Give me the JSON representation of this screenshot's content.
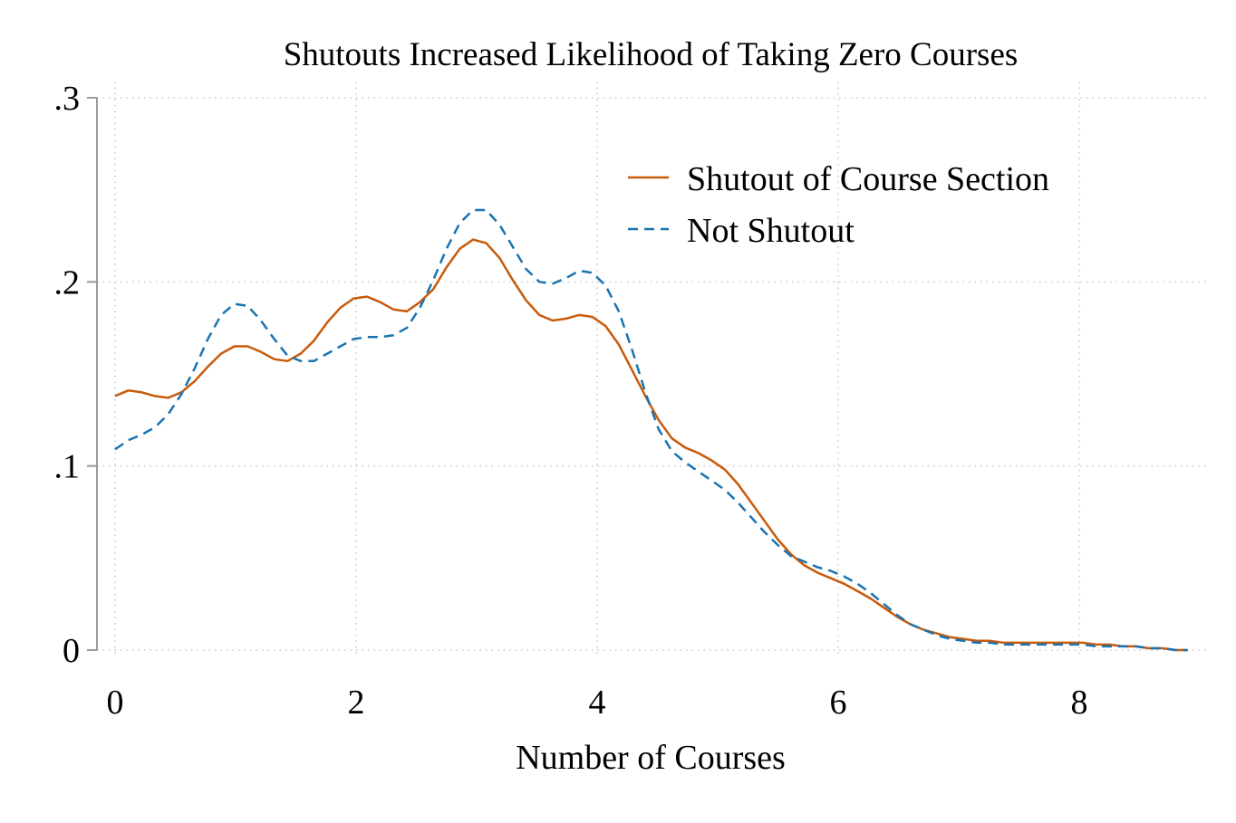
{
  "chart_data": {
    "type": "line",
    "title": "Shutouts Increased Likelihood of Taking Zero Courses",
    "xlabel": "Number of Courses",
    "ylabel": "",
    "xlim": [
      0,
      8.9
    ],
    "ylim": [
      0,
      0.3
    ],
    "x_ticks": [
      0,
      2,
      4,
      6,
      8
    ],
    "x_tick_labels": [
      "0",
      "2",
      "4",
      "6",
      "8"
    ],
    "y_ticks": [
      0,
      0.1,
      0.2,
      0.3
    ],
    "y_tick_labels": [
      "0",
      ".1",
      ".2",
      ".3"
    ],
    "grid": true,
    "legend_position": "top-right",
    "series": [
      {
        "name": "Shutout of Course Section",
        "color": "#c85a0a",
        "style": "solid",
        "x": [
          0,
          0.11,
          0.22,
          0.33,
          0.44,
          0.55,
          0.66,
          0.77,
          0.88,
          0.99,
          1.1,
          1.21,
          1.32,
          1.43,
          1.54,
          1.65,
          1.76,
          1.87,
          1.98,
          2.09,
          2.2,
          2.31,
          2.42,
          2.53,
          2.64,
          2.75,
          2.86,
          2.97,
          3.08,
          3.19,
          3.3,
          3.41,
          3.52,
          3.63,
          3.74,
          3.85,
          3.96,
          4.07,
          4.18,
          4.29,
          4.4,
          4.51,
          4.62,
          4.73,
          4.84,
          4.95,
          5.06,
          5.17,
          5.28,
          5.39,
          5.5,
          5.61,
          5.72,
          5.83,
          5.94,
          6.05,
          6.16,
          6.27,
          6.38,
          6.49,
          6.6,
          6.71,
          6.82,
          6.93,
          7.04,
          7.15,
          7.26,
          7.37,
          7.48,
          7.59,
          7.7,
          7.81,
          7.92,
          8.03,
          8.14,
          8.25,
          8.36,
          8.47,
          8.58,
          8.69,
          8.8,
          8.9
        ],
        "y": [
          0.138,
          0.141,
          0.14,
          0.138,
          0.137,
          0.14,
          0.146,
          0.154,
          0.161,
          0.165,
          0.165,
          0.162,
          0.158,
          0.157,
          0.161,
          0.168,
          0.178,
          0.186,
          0.191,
          0.192,
          0.189,
          0.185,
          0.184,
          0.189,
          0.196,
          0.208,
          0.218,
          0.223,
          0.221,
          0.213,
          0.201,
          0.19,
          0.182,
          0.179,
          0.18,
          0.182,
          0.181,
          0.176,
          0.166,
          0.152,
          0.138,
          0.125,
          0.115,
          0.11,
          0.107,
          0.103,
          0.098,
          0.09,
          0.08,
          0.07,
          0.06,
          0.052,
          0.046,
          0.042,
          0.039,
          0.036,
          0.032,
          0.028,
          0.023,
          0.018,
          0.014,
          0.011,
          0.009,
          0.007,
          0.006,
          0.005,
          0.005,
          0.004,
          0.004,
          0.004,
          0.004,
          0.004,
          0.004,
          0.004,
          0.003,
          0.003,
          0.002,
          0.002,
          0.001,
          0.001,
          0.0,
          0.0
        ]
      },
      {
        "name": "Not Shutout",
        "color": "#1a73b0",
        "style": "dashed",
        "x": [
          0,
          0.11,
          0.22,
          0.33,
          0.44,
          0.55,
          0.66,
          0.77,
          0.88,
          0.99,
          1.1,
          1.21,
          1.32,
          1.43,
          1.54,
          1.65,
          1.76,
          1.87,
          1.98,
          2.09,
          2.2,
          2.31,
          2.42,
          2.53,
          2.64,
          2.75,
          2.86,
          2.97,
          3.08,
          3.19,
          3.3,
          3.41,
          3.52,
          3.63,
          3.74,
          3.85,
          3.96,
          4.07,
          4.18,
          4.29,
          4.4,
          4.51,
          4.62,
          4.73,
          4.84,
          4.95,
          5.06,
          5.17,
          5.28,
          5.39,
          5.5,
          5.61,
          5.72,
          5.83,
          5.94,
          6.05,
          6.16,
          6.27,
          6.38,
          6.49,
          6.6,
          6.71,
          6.82,
          6.93,
          7.04,
          7.15,
          7.26,
          7.37,
          7.48,
          7.59,
          7.7,
          7.81,
          7.92,
          8.03,
          8.14,
          8.25,
          8.36,
          8.47,
          8.58,
          8.69,
          8.8,
          8.9
        ],
        "y": [
          0.109,
          0.114,
          0.117,
          0.121,
          0.128,
          0.139,
          0.153,
          0.169,
          0.182,
          0.188,
          0.187,
          0.179,
          0.169,
          0.16,
          0.157,
          0.157,
          0.161,
          0.165,
          0.169,
          0.17,
          0.17,
          0.171,
          0.175,
          0.186,
          0.201,
          0.218,
          0.232,
          0.239,
          0.239,
          0.231,
          0.219,
          0.207,
          0.2,
          0.199,
          0.202,
          0.206,
          0.205,
          0.198,
          0.184,
          0.163,
          0.14,
          0.12,
          0.108,
          0.102,
          0.097,
          0.092,
          0.087,
          0.08,
          0.072,
          0.064,
          0.057,
          0.051,
          0.048,
          0.045,
          0.043,
          0.04,
          0.036,
          0.031,
          0.025,
          0.019,
          0.014,
          0.011,
          0.008,
          0.006,
          0.005,
          0.004,
          0.004,
          0.003,
          0.003,
          0.003,
          0.003,
          0.003,
          0.003,
          0.003,
          0.002,
          0.002,
          0.002,
          0.002,
          0.001,
          0.001,
          0.0,
          0.0
        ]
      }
    ]
  }
}
